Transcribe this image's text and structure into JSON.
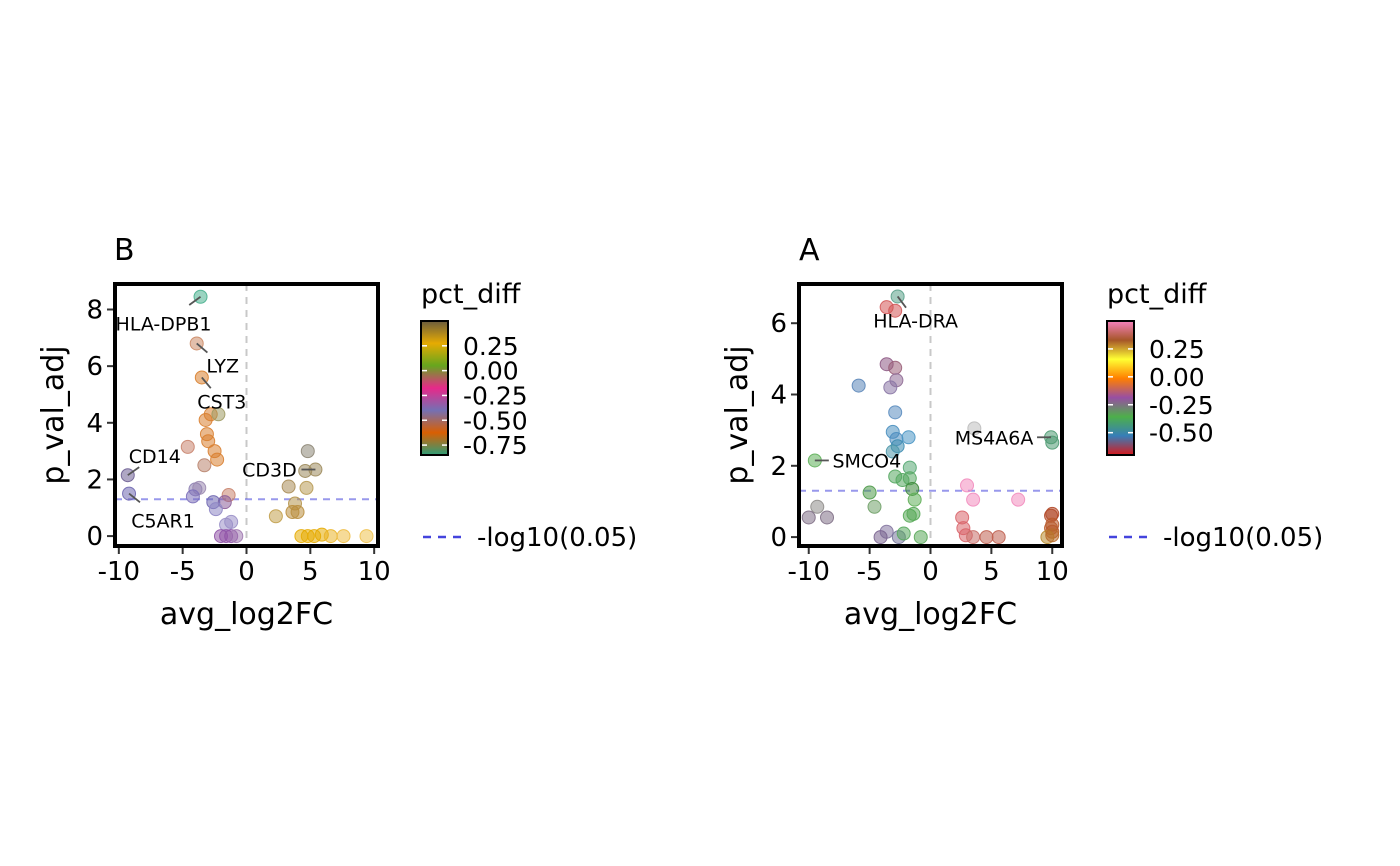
{
  "chart_data": [
    {
      "type": "scatter",
      "panel_tag": "B",
      "xlabel": "avg_log2FC",
      "ylabel": "p_val_adj",
      "xlim": [
        -10.3,
        10.3
      ],
      "ylim": [
        -0.35,
        8.9
      ],
      "xticks": [
        -10,
        -5,
        0,
        5,
        10
      ],
      "xtick_labels": [
        "-10",
        "-5",
        "0",
        "5",
        "10"
      ],
      "yticks": [
        0,
        2,
        4,
        6,
        8
      ],
      "ytick_labels": [
        "0",
        "2",
        "4",
        "6",
        "8"
      ],
      "grid": false,
      "threshold_line": {
        "y": 1.301,
        "label": "-log10(0.05)",
        "color": "#4444dd"
      },
      "zero_line": {
        "x": 0,
        "color": "#c8c8c8"
      },
      "legend": {
        "title": "pct_diff",
        "placement": "right",
        "gradient_colors": [
          "#2e9e78",
          "#d95f02",
          "#7570b3",
          "#e7298a",
          "#66a61e",
          "#e6ab02",
          "#6b5c3d"
        ],
        "domain": [
          -0.85,
          0.5
        ],
        "ticks": [
          0.25,
          0.0,
          -0.25,
          -0.5,
          -0.75
        ],
        "tick_labels": [
          "0.25",
          "0.00",
          "-0.25",
          "-0.50",
          "-0.75"
        ]
      },
      "points": [
        {
          "x": -3.6,
          "y": 8.45,
          "c": "#48b08e"
        },
        {
          "x": -3.9,
          "y": 6.8,
          "c": "#cc8a66"
        },
        {
          "x": -3.5,
          "y": 5.6,
          "c": "#d97f2e"
        },
        {
          "x": -2.8,
          "y": 4.3,
          "c": "#d98030"
        },
        {
          "x": -3.2,
          "y": 4.1,
          "c": "#d98030"
        },
        {
          "x": -2.2,
          "y": 4.3,
          "c": "#9f9a63"
        },
        {
          "x": -3.1,
          "y": 3.6,
          "c": "#d98030"
        },
        {
          "x": -3.0,
          "y": 3.35,
          "c": "#d98030"
        },
        {
          "x": -2.5,
          "y": 3.0,
          "c": "#d98030"
        },
        {
          "x": -2.3,
          "y": 2.7,
          "c": "#d98030"
        },
        {
          "x": -4.6,
          "y": 3.15,
          "c": "#c9846e"
        },
        {
          "x": -3.3,
          "y": 2.5,
          "c": "#b9846e"
        },
        {
          "x": -9.3,
          "y": 2.15,
          "c": "#6e5f94"
        },
        {
          "x": -9.2,
          "y": 1.5,
          "c": "#6f67b1"
        },
        {
          "x": -4.0,
          "y": 1.65,
          "c": "#8d7fb2"
        },
        {
          "x": -3.7,
          "y": 1.7,
          "c": "#9b89b0"
        },
        {
          "x": -4.2,
          "y": 1.4,
          "c": "#7c70b9"
        },
        {
          "x": -1.4,
          "y": 1.45,
          "c": "#c9846e"
        },
        {
          "x": -1.7,
          "y": 1.2,
          "c": "#8d5e9a"
        },
        {
          "x": -2.6,
          "y": 1.2,
          "c": "#6f67b1"
        },
        {
          "x": -2.4,
          "y": 0.95,
          "c": "#8e86c4"
        },
        {
          "x": -1.6,
          "y": 0.4,
          "c": "#9a90c8"
        },
        {
          "x": -1.2,
          "y": 0.5,
          "c": "#9a90c8"
        },
        {
          "x": -2.0,
          "y": 0.0,
          "c": "#9155a8"
        },
        {
          "x": -1.6,
          "y": 0.0,
          "c": "#9155a8"
        },
        {
          "x": -1.2,
          "y": 0.0,
          "c": "#9155a8"
        },
        {
          "x": -0.8,
          "y": 0.0,
          "c": "#a07ab0"
        },
        {
          "x": 4.8,
          "y": 3.0,
          "c": "#8d8676"
        },
        {
          "x": 5.4,
          "y": 2.35,
          "c": "#9d8b5c"
        },
        {
          "x": 4.6,
          "y": 2.3,
          "c": "#9d8b5c"
        },
        {
          "x": 3.3,
          "y": 1.75,
          "c": "#a98c57"
        },
        {
          "x": 4.7,
          "y": 1.7,
          "c": "#b89b55"
        },
        {
          "x": 3.8,
          "y": 1.15,
          "c": "#b5954e"
        },
        {
          "x": 3.6,
          "y": 0.85,
          "c": "#b98e3e"
        },
        {
          "x": 4.0,
          "y": 0.85,
          "c": "#b98e3e"
        },
        {
          "x": 2.3,
          "y": 0.7,
          "c": "#c2a04c"
        },
        {
          "x": 4.3,
          "y": 0.0,
          "c": "#e6ab02"
        },
        {
          "x": 4.8,
          "y": 0.0,
          "c": "#e6ab02"
        },
        {
          "x": 5.3,
          "y": 0.0,
          "c": "#e6ab02"
        },
        {
          "x": 5.9,
          "y": 0.05,
          "c": "#e6ab02"
        },
        {
          "x": 6.6,
          "y": 0.0,
          "c": "#eab52a"
        },
        {
          "x": 7.6,
          "y": 0.0,
          "c": "#eebd44"
        },
        {
          "x": 9.4,
          "y": 0.0,
          "c": "#efc24f"
        }
      ],
      "labels": [
        {
          "text": "HLA-DPB1",
          "x": -3.6,
          "y": 8.45,
          "dx": -37,
          "dy": 27
        },
        {
          "text": "LYZ",
          "x": -3.9,
          "y": 6.8,
          "dx": 26,
          "dy": 22
        },
        {
          "text": "CST3",
          "x": -3.5,
          "y": 5.6,
          "dx": 20,
          "dy": 24
        },
        {
          "text": "CD14",
          "x": -9.3,
          "y": 2.15,
          "dx": 27,
          "dy": -19
        },
        {
          "text": "C5AR1",
          "x": -9.2,
          "y": 1.5,
          "dx": 34,
          "dy": 27
        },
        {
          "text": "CD3D",
          "x": 5.4,
          "y": 2.35,
          "dx": -46,
          "dy": 0
        }
      ]
    },
    {
      "type": "scatter",
      "panel_tag": "A",
      "xlabel": "avg_log2FC",
      "ylabel": "p_val_adj",
      "xlim": [
        -10.8,
        10.8
      ],
      "ylim": [
        -0.25,
        7.1
      ],
      "xticks": [
        -10,
        -5,
        0,
        5,
        10
      ],
      "xtick_labels": [
        "-10",
        "-5",
        "0",
        "5",
        "10"
      ],
      "yticks": [
        0,
        2,
        4,
        6
      ],
      "ytick_labels": [
        "0",
        "2",
        "4",
        "6"
      ],
      "grid": false,
      "threshold_line": {
        "y": 1.301,
        "label": "-log10(0.05)",
        "color": "#4444dd"
      },
      "zero_line": {
        "x": 0,
        "color": "#c8c8c8"
      },
      "legend": {
        "title": "pct_diff",
        "placement": "right",
        "gradient_colors": [
          "#d7191c",
          "#377eb8",
          "#4daf4a",
          "#984ea3",
          "#ff7f00",
          "#ffff33",
          "#a65628",
          "#f781bf"
        ],
        "domain": [
          -0.7,
          0.5
        ],
        "ticks": [
          0.25,
          0.0,
          -0.25,
          -0.5
        ],
        "tick_labels": [
          "0.25",
          "0.00",
          "-0.25",
          "-0.50"
        ]
      },
      "points": [
        {
          "x": -2.7,
          "y": 6.75,
          "c": "#5aa089"
        },
        {
          "x": -3.6,
          "y": 6.45,
          "c": "#d35656"
        },
        {
          "x": -2.9,
          "y": 6.35,
          "c": "#d35656"
        },
        {
          "x": -3.6,
          "y": 4.85,
          "c": "#8e5a85"
        },
        {
          "x": -2.9,
          "y": 4.75,
          "c": "#9a5f78"
        },
        {
          "x": -2.8,
          "y": 4.4,
          "c": "#8f6b95"
        },
        {
          "x": -3.3,
          "y": 4.2,
          "c": "#8a77a5"
        },
        {
          "x": -5.9,
          "y": 4.25,
          "c": "#5a85b8"
        },
        {
          "x": -2.9,
          "y": 3.5,
          "c": "#5a8cbf"
        },
        {
          "x": -3.1,
          "y": 2.95,
          "c": "#4a8fbf"
        },
        {
          "x": -2.8,
          "y": 2.75,
          "c": "#4d8dc0"
        },
        {
          "x": -2.7,
          "y": 2.55,
          "c": "#3e8db1"
        },
        {
          "x": -1.8,
          "y": 2.8,
          "c": "#4a96c4"
        },
        {
          "x": -3.1,
          "y": 2.4,
          "c": "#4a96a8"
        },
        {
          "x": -1.7,
          "y": 1.95,
          "c": "#55a872"
        },
        {
          "x": -2.9,
          "y": 1.7,
          "c": "#55a860"
        },
        {
          "x": -2.3,
          "y": 1.6,
          "c": "#55a860"
        },
        {
          "x": -1.7,
          "y": 1.65,
          "c": "#55a860"
        },
        {
          "x": -9.5,
          "y": 2.15,
          "c": "#5fb05a"
        },
        {
          "x": -5.0,
          "y": 1.25,
          "c": "#4e9a4a"
        },
        {
          "x": -1.5,
          "y": 1.35,
          "c": "#3e8a3a"
        },
        {
          "x": -1.3,
          "y": 1.05,
          "c": "#5fae57"
        },
        {
          "x": -4.6,
          "y": 0.85,
          "c": "#6fa067"
        },
        {
          "x": -1.4,
          "y": 0.65,
          "c": "#55a855"
        },
        {
          "x": -1.7,
          "y": 0.6,
          "c": "#55a855"
        },
        {
          "x": -9.3,
          "y": 0.85,
          "c": "#8e8c8a"
        },
        {
          "x": -10.0,
          "y": 0.55,
          "c": "#7f6f86"
        },
        {
          "x": -8.5,
          "y": 0.55,
          "c": "#7f6f86"
        },
        {
          "x": -3.6,
          "y": 0.15,
          "c": "#8475a0"
        },
        {
          "x": -4.1,
          "y": 0.0,
          "c": "#7a6490"
        },
        {
          "x": -2.6,
          "y": 0.0,
          "c": "#76769a"
        },
        {
          "x": -2.2,
          "y": 0.1,
          "c": "#58a85e"
        },
        {
          "x": -0.8,
          "y": 0.0,
          "c": "#5aa85a"
        },
        {
          "x": 3.6,
          "y": 3.05,
          "c": "#bdbdbd"
        },
        {
          "x": 9.9,
          "y": 2.8,
          "c": "#4e9a72"
        },
        {
          "x": 10.0,
          "y": 2.65,
          "c": "#4e9a72"
        },
        {
          "x": 3.0,
          "y": 1.45,
          "c": "#f28cbe"
        },
        {
          "x": 7.2,
          "y": 1.05,
          "c": "#f28cbe"
        },
        {
          "x": 3.5,
          "y": 1.05,
          "c": "#f28cbe"
        },
        {
          "x": 2.6,
          "y": 0.55,
          "c": "#d9646a"
        },
        {
          "x": 2.7,
          "y": 0.25,
          "c": "#d9646a"
        },
        {
          "x": 2.9,
          "y": 0.05,
          "c": "#d9646a"
        },
        {
          "x": 3.5,
          "y": 0.0,
          "c": "#c9706a"
        },
        {
          "x": 4.6,
          "y": 0.0,
          "c": "#c06050"
        },
        {
          "x": 5.6,
          "y": 0.0,
          "c": "#c06050"
        },
        {
          "x": 10.0,
          "y": 0.65,
          "c": "#b24a2a"
        },
        {
          "x": 9.9,
          "y": 0.6,
          "c": "#b24a2a"
        },
        {
          "x": 10.0,
          "y": 0.35,
          "c": "#b85a2c"
        },
        {
          "x": 9.9,
          "y": 0.25,
          "c": "#b85a2c"
        },
        {
          "x": 10.0,
          "y": 0.15,
          "c": "#b85a2c"
        },
        {
          "x": 9.6,
          "y": 0.0,
          "c": "#b88a2c"
        },
        {
          "x": 10.0,
          "y": 0.05,
          "c": "#b86a2c"
        }
      ],
      "labels": [
        {
          "text": "HLA-DRA",
          "x": -2.7,
          "y": 6.75,
          "dx": 18,
          "dy": 24
        },
        {
          "text": "SMCO4",
          "x": -9.5,
          "y": 2.15,
          "dx": 52,
          "dy": 0
        },
        {
          "text": "MS4A6A",
          "x": 9.9,
          "y": 2.8,
          "dx": -57,
          "dy": 0
        }
      ]
    }
  ]
}
